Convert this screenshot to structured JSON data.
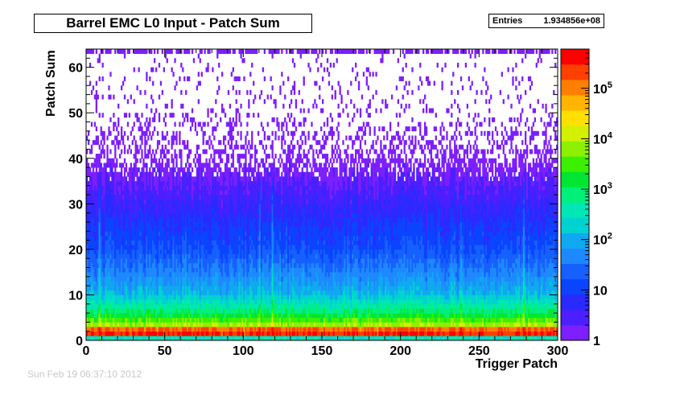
{
  "title": "Barrel EMC L0 Input - Patch Sum",
  "stats": {
    "label": "Entries",
    "value": "1.934856e+08"
  },
  "footer": {
    "date_text": "Sun Feb 19 06:37:10 2012"
  },
  "chart_data": {
    "type": "heatmap",
    "title": "Barrel EMC L0 Input - Patch Sum",
    "xlabel": "Trigger Patch",
    "ylabel": "Patch Sum",
    "xlim": [
      0,
      300
    ],
    "ylim": [
      0,
      64
    ],
    "x_ticks": [
      0,
      50,
      100,
      150,
      200,
      250,
      300
    ],
    "y_ticks": [
      0,
      10,
      20,
      30,
      40,
      50,
      60
    ],
    "z_scale": "log",
    "z_range": [
      1,
      600000
    ],
    "z_tick_labels": [
      {
        "value": 1,
        "label": "1"
      },
      {
        "value": 10,
        "label": "10"
      },
      {
        "value": 100,
        "label": "10^2"
      },
      {
        "value": 1000,
        "label": "10^3"
      },
      {
        "value": 10000,
        "label": "10^4"
      },
      {
        "value": 100000,
        "label": "10^5"
      }
    ],
    "bins": {
      "x_count": 300,
      "y_count": 64
    },
    "count_profile_by_patch_sum": [
      {
        "patch_sum": 0,
        "count": 300
      },
      {
        "patch_sum": 1,
        "count": 300000
      },
      {
        "patch_sum": 2,
        "count": 150000
      },
      {
        "patch_sum": 3,
        "count": 8000
      },
      {
        "patch_sum": 5,
        "count": 1500
      },
      {
        "patch_sum": 8,
        "count": 300
      },
      {
        "patch_sum": 10,
        "count": 120
      },
      {
        "patch_sum": 15,
        "count": 40
      },
      {
        "patch_sum": 20,
        "count": 15
      },
      {
        "patch_sum": 25,
        "count": 8
      },
      {
        "patch_sum": 30,
        "count": 4
      },
      {
        "patch_sum": 35,
        "count": 2
      },
      {
        "patch_sum": 40,
        "count": 1
      },
      {
        "patch_sum": 63,
        "count": 1
      }
    ],
    "occupancy_by_patch_sum": [
      {
        "patch_sum": 35,
        "fraction": 0.95
      },
      {
        "patch_sum": 40,
        "fraction": 0.45
      },
      {
        "patch_sum": 50,
        "fraction": 0.12
      },
      {
        "patch_sum": 62,
        "fraction": 0.05
      },
      {
        "patch_sum": 63,
        "fraction": 0.7
      }
    ],
    "hot_patches": [
      8,
      110,
      118,
      238,
      278
    ],
    "grid": false,
    "legend": "color bar right"
  }
}
